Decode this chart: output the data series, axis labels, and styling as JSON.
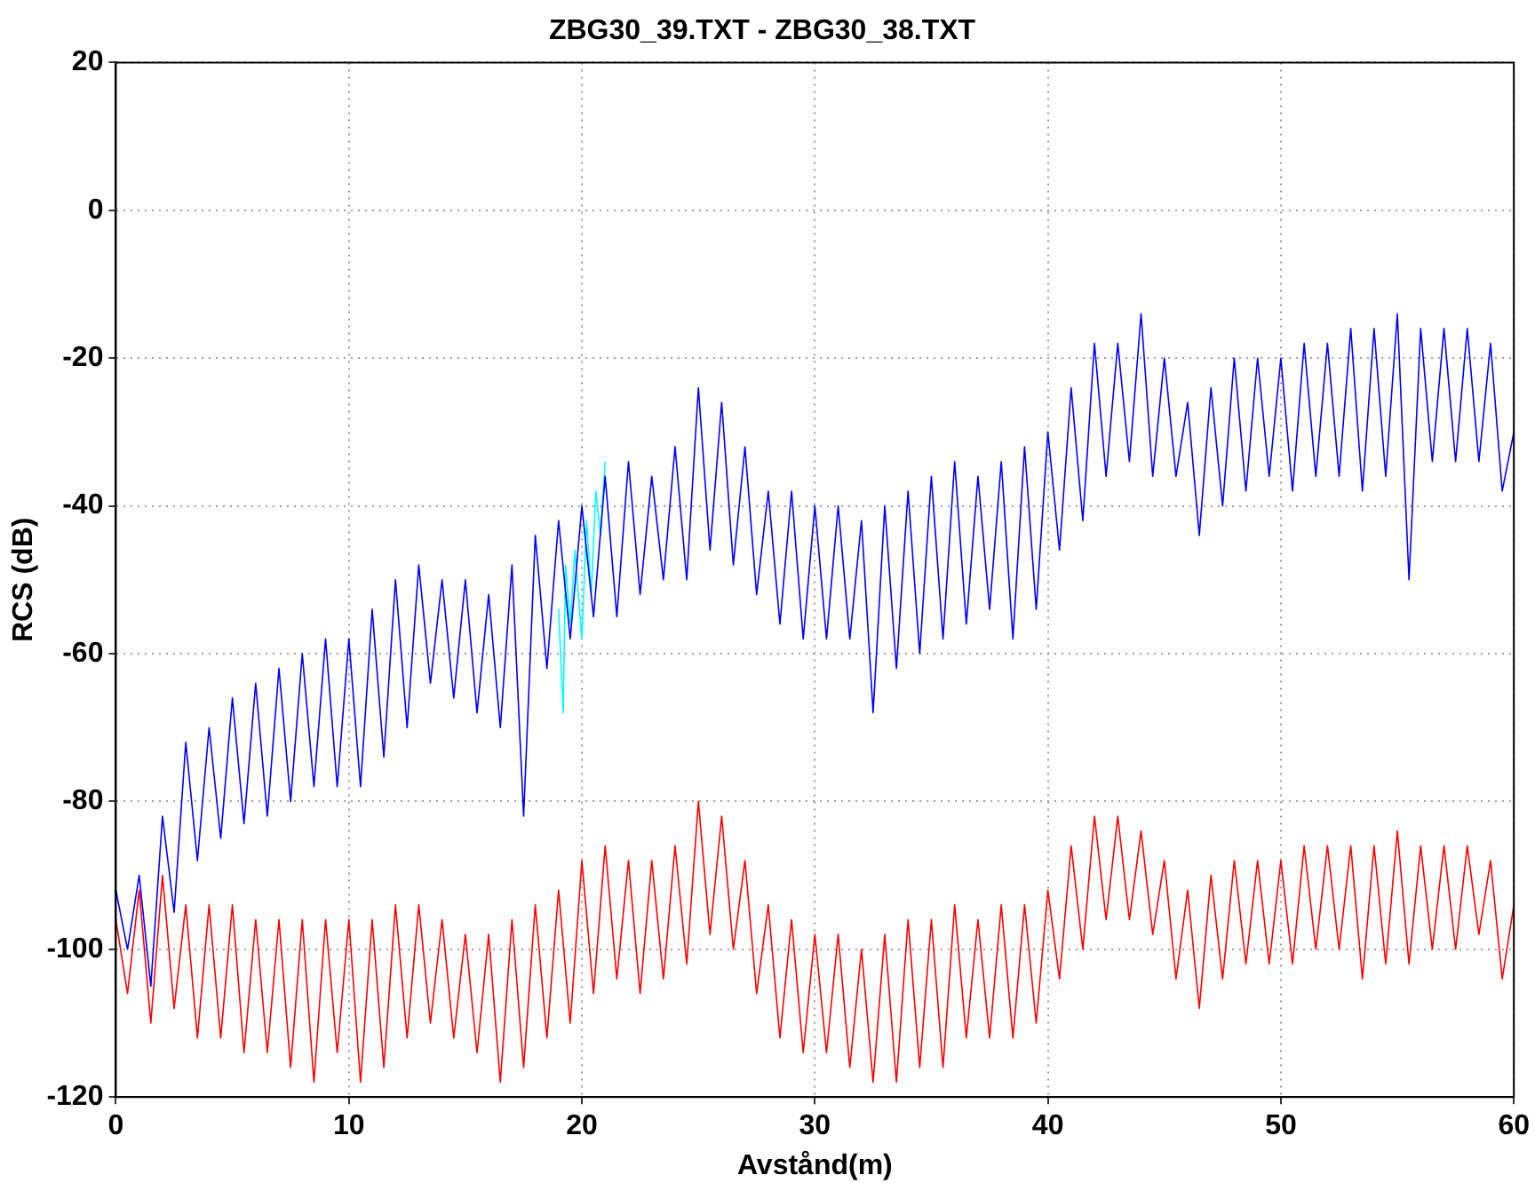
{
  "chart_data": {
    "type": "line",
    "title": "ZBG30_39.TXT - ZBG30_38.TXT",
    "xlabel": "Avstånd(m)",
    "ylabel": "RCS (dB)",
    "x": [
      0,
      0.5,
      1,
      1.5,
      2,
      2.5,
      3,
      3.5,
      4,
      4.5,
      5,
      5.5,
      6,
      6.5,
      7,
      7.5,
      8,
      8.5,
      9,
      9.5,
      10,
      10.5,
      11,
      11.5,
      12,
      12.5,
      13,
      13.5,
      14,
      14.5,
      15,
      15.5,
      16,
      16.5,
      17,
      17.5,
      18,
      18.5,
      19,
      19.5,
      20,
      20.5,
      21,
      21.5,
      22,
      22.5,
      23,
      23.5,
      24,
      24.5,
      25,
      25.5,
      26,
      26.5,
      27,
      27.5,
      28,
      28.5,
      29,
      29.5,
      30,
      30.5,
      31,
      31.5,
      32,
      32.5,
      33,
      33.5,
      34,
      34.5,
      35,
      35.5,
      36,
      36.5,
      37,
      37.5,
      38,
      38.5,
      39,
      39.5,
      40,
      40.5,
      41,
      41.5,
      42,
      42.5,
      43,
      43.5,
      44,
      44.5,
      45,
      45.5,
      46,
      46.5,
      47,
      47.5,
      48,
      48.5,
      49,
      49.5,
      50,
      50.5,
      51,
      51.5,
      52,
      52.5,
      53,
      53.5,
      54,
      54.5,
      55,
      55.5,
      56,
      56.5,
      57,
      57.5,
      58,
      58.5,
      59,
      59.5,
      60
    ],
    "series": [
      {
        "color": "#0000ff",
        "values": [
          -92,
          -100,
          -90,
          -105,
          -82,
          -95,
          -72,
          -88,
          -70,
          -85,
          -66,
          -83,
          -64,
          -82,
          -62,
          -80,
          -60,
          -78,
          -58,
          -78,
          -58,
          -78,
          -54,
          -74,
          -50,
          -70,
          -48,
          -64,
          -50,
          -66,
          -50,
          -68,
          -52,
          -70,
          -48,
          -82,
          -44,
          -62,
          -42,
          -58,
          -40,
          -55,
          -36,
          -55,
          -34,
          -52,
          -36,
          -50,
          -32,
          -50,
          -24,
          -46,
          -26,
          -48,
          -32,
          -52,
          -38,
          -56,
          -38,
          -58,
          -40,
          -58,
          -40,
          -58,
          -42,
          -68,
          -40,
          -62,
          -38,
          -60,
          -36,
          -58,
          -34,
          -56,
          -36,
          -54,
          -34,
          -58,
          -32,
          -54,
          -30,
          -46,
          -24,
          -42,
          -18,
          -36,
          -18,
          -34,
          -14,
          -36,
          -20,
          -36,
          -26,
          -44,
          -24,
          -40,
          -20,
          -38,
          -20,
          -36,
          -20,
          -38,
          -18,
          -36,
          -18,
          -36,
          -16,
          -38,
          -16,
          -36,
          -14,
          -50,
          -16,
          -34,
          -16,
          -34,
          -16,
          -34,
          -18,
          -38,
          -30
        ]
      },
      {
        "color": "#00ffff",
        "x": [
          19,
          19.2,
          19.3,
          19.5,
          19.7,
          20,
          20.2,
          20.4,
          20.6,
          20.8,
          21
        ],
        "values": [
          -54,
          -68,
          -48,
          -56,
          -46,
          -58,
          -42,
          -52,
          -38,
          -44,
          -34
        ]
      },
      {
        "color": "#ff0000",
        "values": [
          -96,
          -106,
          -92,
          -110,
          -90,
          -108,
          -94,
          -112,
          -94,
          -112,
          -94,
          -114,
          -96,
          -114,
          -96,
          -116,
          -96,
          -118,
          -96,
          -114,
          -96,
          -118,
          -96,
          -116,
          -94,
          -112,
          -94,
          -110,
          -96,
          -112,
          -98,
          -114,
          -98,
          -118,
          -96,
          -116,
          -94,
          -112,
          -92,
          -110,
          -88,
          -106,
          -86,
          -104,
          -88,
          -106,
          -88,
          -104,
          -86,
          -102,
          -80,
          -98,
          -82,
          -100,
          -88,
          -106,
          -94,
          -112,
          -96,
          -114,
          -98,
          -114,
          -98,
          -116,
          -100,
          -118,
          -98,
          -118,
          -96,
          -116,
          -96,
          -116,
          -94,
          -112,
          -96,
          -112,
          -94,
          -112,
          -94,
          -110,
          -92,
          -104,
          -86,
          -100,
          -82,
          -96,
          -82,
          -96,
          -84,
          -98,
          -88,
          -104,
          -92,
          -108,
          -90,
          -104,
          -88,
          -102,
          -88,
          -102,
          -88,
          -102,
          -86,
          -100,
          -86,
          -100,
          -86,
          -104,
          -86,
          -102,
          -84,
          -102,
          -86,
          -100,
          -86,
          -100,
          -86,
          -98,
          -88,
          -104,
          -94
        ]
      }
    ],
    "xlim": [
      0,
      60
    ],
    "xticks": [
      0,
      10,
      20,
      30,
      40,
      50,
      60
    ],
    "ylim": [
      -120,
      20
    ],
    "yticks": [
      -120,
      -100,
      -80,
      -60,
      -40,
      -20,
      0,
      20
    ],
    "grid": true,
    "legend": false,
    "marker": "none",
    "line_style": "solid"
  }
}
